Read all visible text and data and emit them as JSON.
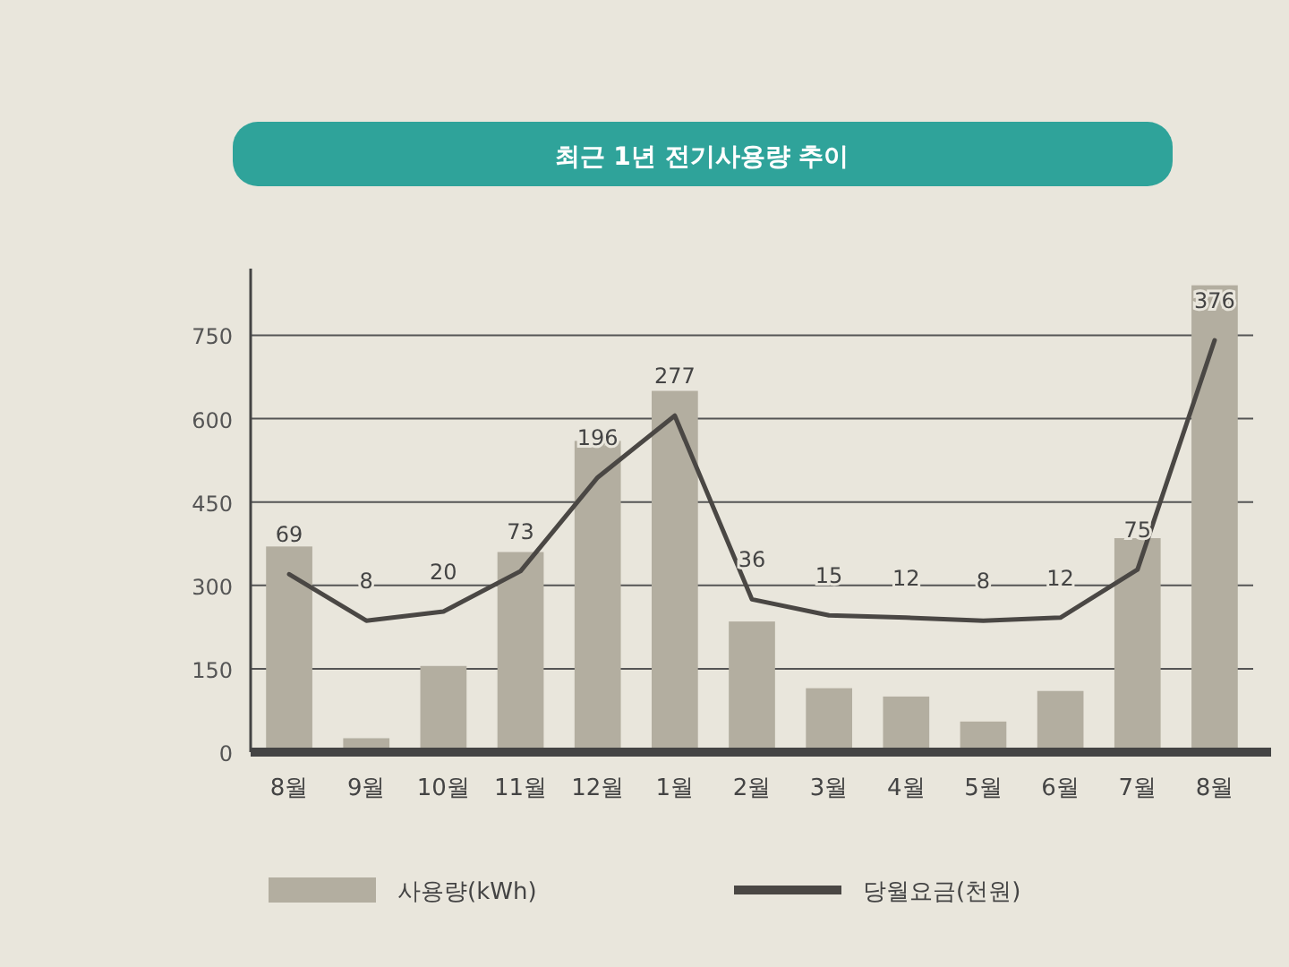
{
  "chart_data": {
    "type": "bar",
    "title": "최근 1년 전기사용량 추이",
    "categories": [
      "8월",
      "9월",
      "10월",
      "11월",
      "12월",
      "1월",
      "2월",
      "3월",
      "4월",
      "5월",
      "6월",
      "7월",
      "8월"
    ],
    "series": [
      {
        "name": "사용량(kWh)",
        "color": "#b3aea0",
        "values": [
          370,
          25,
          155,
          360,
          560,
          650,
          235,
          115,
          100,
          55,
          110,
          385,
          840
        ]
      },
      {
        "name": "당월요금(천원)",
        "type": "line",
        "axis": "y2",
        "color": "#4a4744",
        "values": [
          69,
          8,
          20,
          73,
          196,
          277,
          36,
          15,
          12,
          8,
          12,
          75,
          376
        ],
        "value_labels": [
          "69",
          "8",
          "20",
          "73",
          "196",
          "277",
          "36",
          "15",
          "12",
          "8",
          "12",
          "75",
          "376"
        ]
      }
    ],
    "ylim": [
      0,
      870
    ],
    "yticks": [
      0,
      150,
      300,
      450,
      600,
      750
    ],
    "tick_labels": "xy",
    "grid": "y",
    "legend": "bottom",
    "marker": "none",
    "line_style": "solid"
  }
}
